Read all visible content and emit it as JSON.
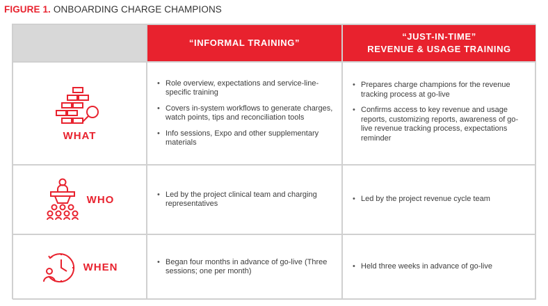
{
  "figure": {
    "title_lead": "FIGURE 1.",
    "title_rest": "ONBOARDING CHARGE CHAMPIONS"
  },
  "columns": {
    "informal": {
      "lines": [
        "“INFORMAL TRAINING”"
      ]
    },
    "jit": {
      "lines": [
        "“JUST-IN-TIME”",
        "REVENUE & USAGE TRAINING"
      ]
    }
  },
  "rows": [
    {
      "label": "WHAT",
      "icon": "flowchart-magnifier-icon",
      "informal": [
        "Role overview, expectations and service-line-specific training",
        "Covers in-system workflows to generate charges, watch points, tips and reconciliation tools",
        "Info sessions, Expo and other supplementary materials"
      ],
      "jit": [
        "Prepares charge champions for the revenue tracking process at go-live",
        "Confirms access to key revenue and usage reports, customizing reports, awareness of go-live revenue tracking process, expectations reminder"
      ]
    },
    {
      "label": "WHO",
      "icon": "presenter-audience-icon",
      "informal": [
        "Led by the project clinical team and charging representatives"
      ],
      "jit": [
        "Led by the project revenue cycle team"
      ]
    },
    {
      "label": "WHEN",
      "icon": "clock-person-icon",
      "informal": [
        "Began four months in advance of go-live (Three sessions; one per month)"
      ],
      "jit": [
        "Held three weeks in advance of go-live"
      ]
    }
  ],
  "colors": {
    "accent": "#e8222e",
    "header_gray": "#d8d8d8",
    "border": "#d0d0d0"
  }
}
